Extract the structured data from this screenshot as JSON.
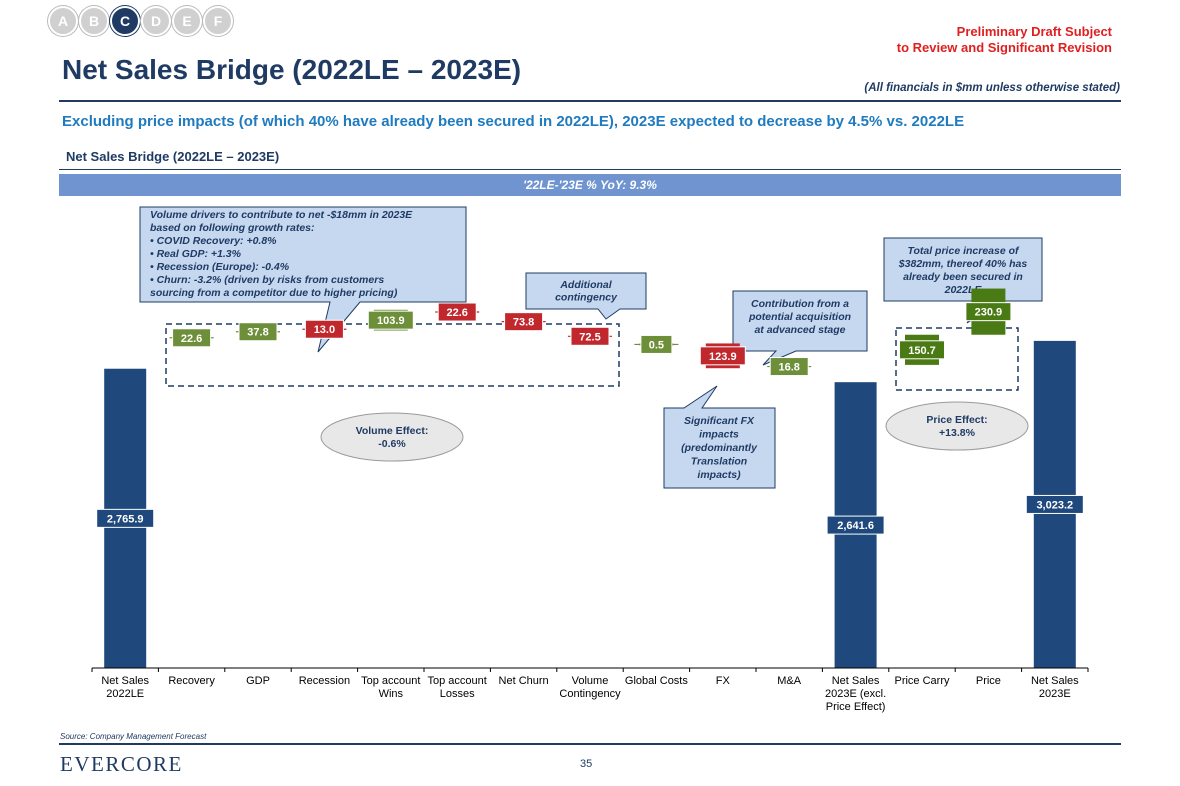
{
  "nav": {
    "sections": [
      {
        "letter": "A",
        "active": false
      },
      {
        "letter": "B",
        "active": false
      },
      {
        "letter": "C",
        "active": true
      },
      {
        "letter": "D",
        "active": false
      },
      {
        "letter": "E",
        "active": false
      },
      {
        "letter": "F",
        "active": false
      }
    ]
  },
  "draft_notice": {
    "line1": "Preliminary Draft Subject",
    "line2": "to Review and Significant Revision"
  },
  "page_title": "Net Sales Bridge (2022LE – 2023E)",
  "financials_note": "(All financials in $mm unless otherwise stated)",
  "headline": "Excluding price impacts (of which 40% have already been secured in 2022LE), 2023E expected to decrease by 4.5% vs. 2022LE",
  "section_title": "Net Sales Bridge (2022LE – 2023E)",
  "yoy_banner": "'22LE-'23E % YoY: 9.3%",
  "colors": {
    "navy": "#1f497d",
    "increase": "#6e8f3a",
    "decrease": "#c0282d",
    "price_green": "#4a7a14",
    "callout_fill": "#c6d8f0",
    "callout_border": "#1f3b63"
  },
  "chart_data": {
    "type": "bar",
    "subtype": "waterfall",
    "title": "Net Sales Bridge (2022LE – 2023E)",
    "categories": [
      "Net Sales\n2022LE",
      "Recovery",
      "GDP",
      "Recession",
      "Top account\nWins",
      "Top account\nLosses",
      "Net Churn",
      "Volume\nContingency",
      "Global Costs",
      "FX",
      "M&A",
      "Net Sales\n2023E (excl.\nPrice Effect)",
      "Price Carry",
      "Price",
      "Net Sales\n2023E"
    ],
    "values": [
      2765.9,
      22.6,
      37.8,
      -13.0,
      103.9,
      -22.6,
      -73.8,
      -72.5,
      0.5,
      -123.9,
      16.8,
      2641.6,
      150.7,
      230.9,
      3023.2
    ],
    "labels": [
      "2,765.9",
      "22.6",
      "37.8",
      "13.0",
      "103.9",
      "22.6",
      "73.8",
      "72.5",
      "0.5",
      "123.9",
      "16.8",
      "2,641.6",
      "150.7",
      "230.9",
      "3,023.2"
    ],
    "kinds": [
      "total",
      "increase",
      "increase",
      "decrease",
      "increase",
      "decrease",
      "decrease",
      "decrease",
      "increase",
      "decrease",
      "increase",
      "total",
      "increase",
      "increase",
      "total"
    ],
    "ylim": [
      0,
      3200
    ],
    "grid": false,
    "legend": "none",
    "annotations": {
      "volume_drivers": {
        "lines": [
          "Volume drivers to contribute to net -$18mm in 2023E",
          "based on following growth rates:",
          "  • COVID Recovery: +0.8%",
          "  • Real GDP: +1.3%",
          "  • Recession (Europe): -0.4%",
          "  • Churn: -3.2% (driven by risks from customers",
          "     sourcing from a competitor due to higher pricing)"
        ]
      },
      "contingency": {
        "lines": [
          "Additional",
          "contingency"
        ]
      },
      "acquisition": {
        "lines": [
          "Contribution from a",
          "potential acquisition",
          "at advanced stage"
        ]
      },
      "price_increase": {
        "lines": [
          "Total price increase of",
          "$382mm, thereof 40% has",
          "already been secured in",
          "2022LE"
        ]
      },
      "fx": {
        "lines": [
          "Significant FX",
          "impacts",
          "(predominantly",
          "Translation",
          "impacts)"
        ]
      },
      "volume_effect": {
        "lines": [
          "Volume Effect:",
          "-0.6%"
        ]
      },
      "price_effect": {
        "lines": [
          "Price Effect:",
          "+13.8%"
        ]
      }
    }
  },
  "footer": {
    "source": "Source: Company Management Forecast",
    "logo": "EVERCORE",
    "page_number": "35"
  }
}
